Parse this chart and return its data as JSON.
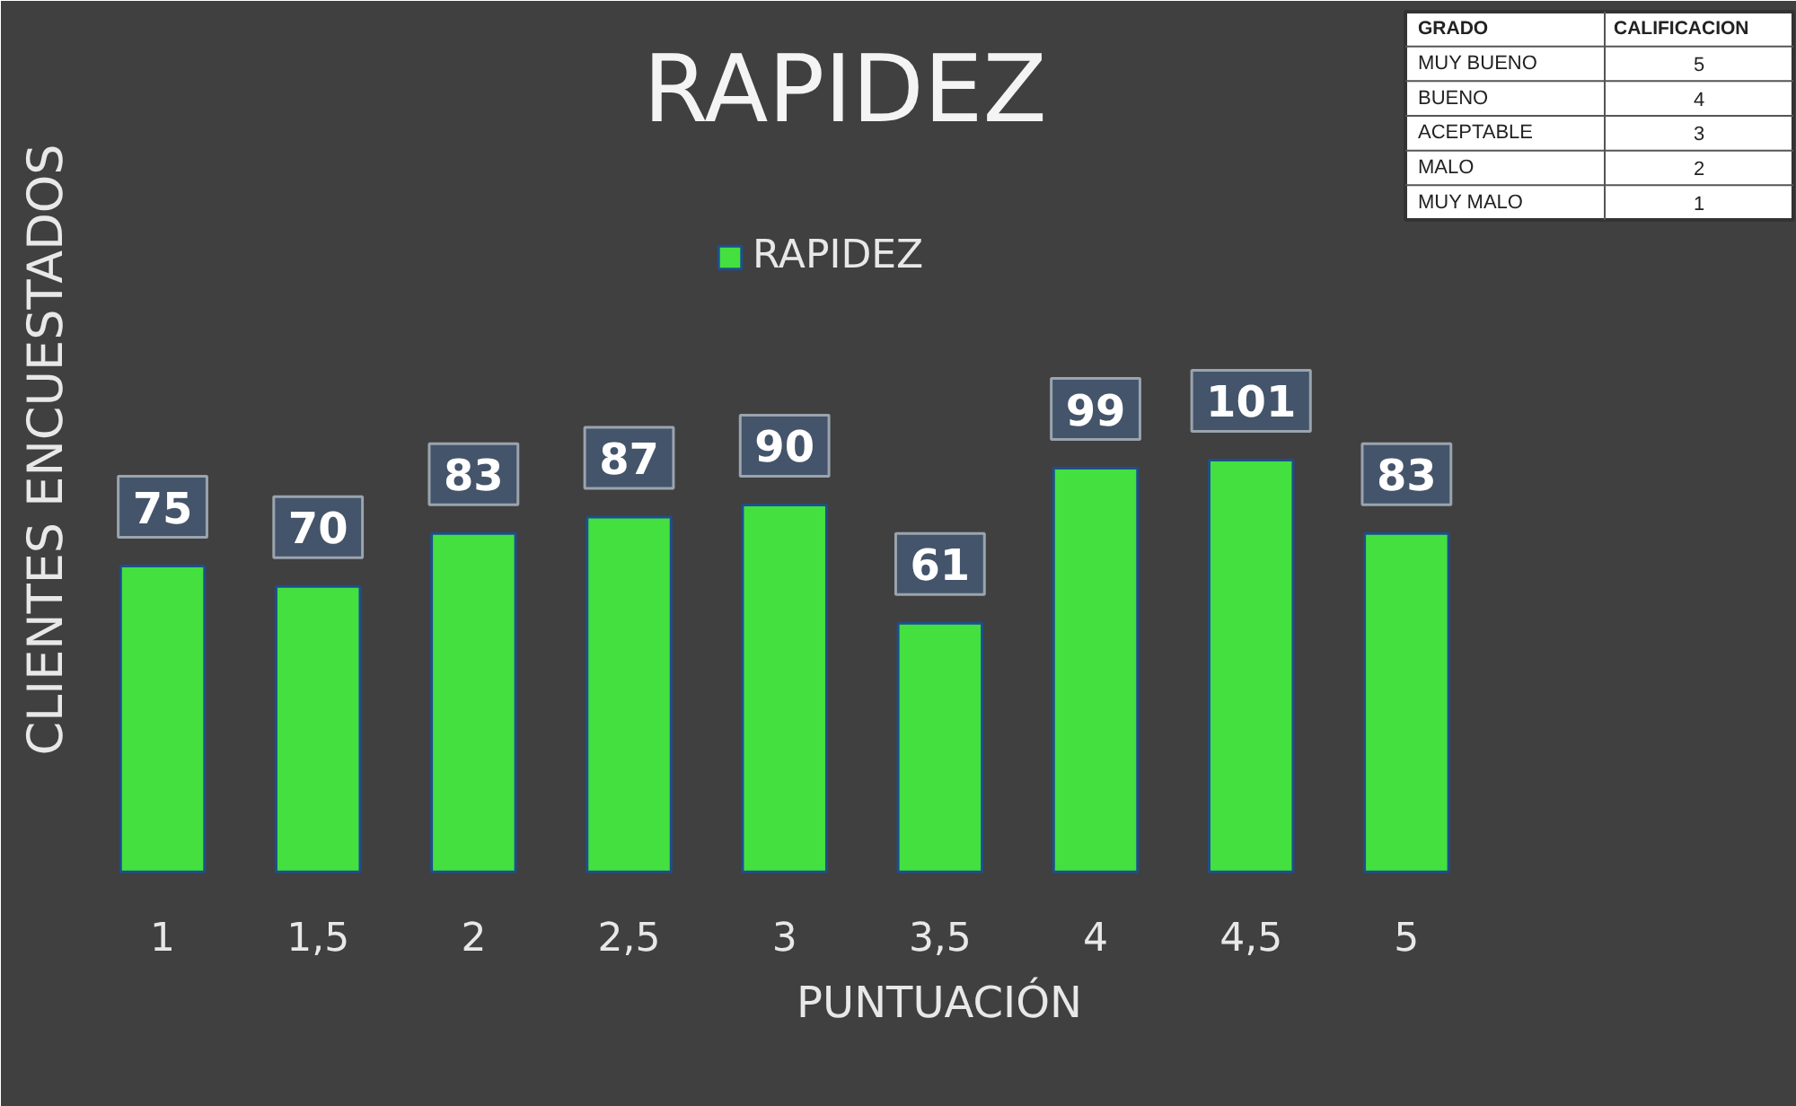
{
  "chart_data": [
    {
      "type": "bar",
      "title": "RAPIDEZ",
      "categories": [
        "1",
        "1,5",
        "2",
        "2,5",
        "3",
        "3,5",
        "4",
        "4,5",
        "5"
      ],
      "series": [
        {
          "name": "RAPIDEZ",
          "color": "#44e040",
          "values": [
            75,
            70,
            83,
            87,
            90,
            61,
            99,
            101,
            83
          ]
        }
      ],
      "xlabel": "PUNTUACIÓN",
      "ylabel": "CLIENTES ENCUESTADOS",
      "legend": "top",
      "data_labels": true,
      "tick_labels": "x"
    },
    {
      "type": "other",
      "annotations": [
        "GRADO",
        "CALIFICACION"
      ],
      "categories": [
        "MUY BUENO",
        "BUENO",
        "ACEPTABLE",
        "MALO",
        "MUY MALO"
      ],
      "values": [
        5,
        4,
        3,
        2,
        1
      ],
      "data_labels": true
    }
  ]
}
